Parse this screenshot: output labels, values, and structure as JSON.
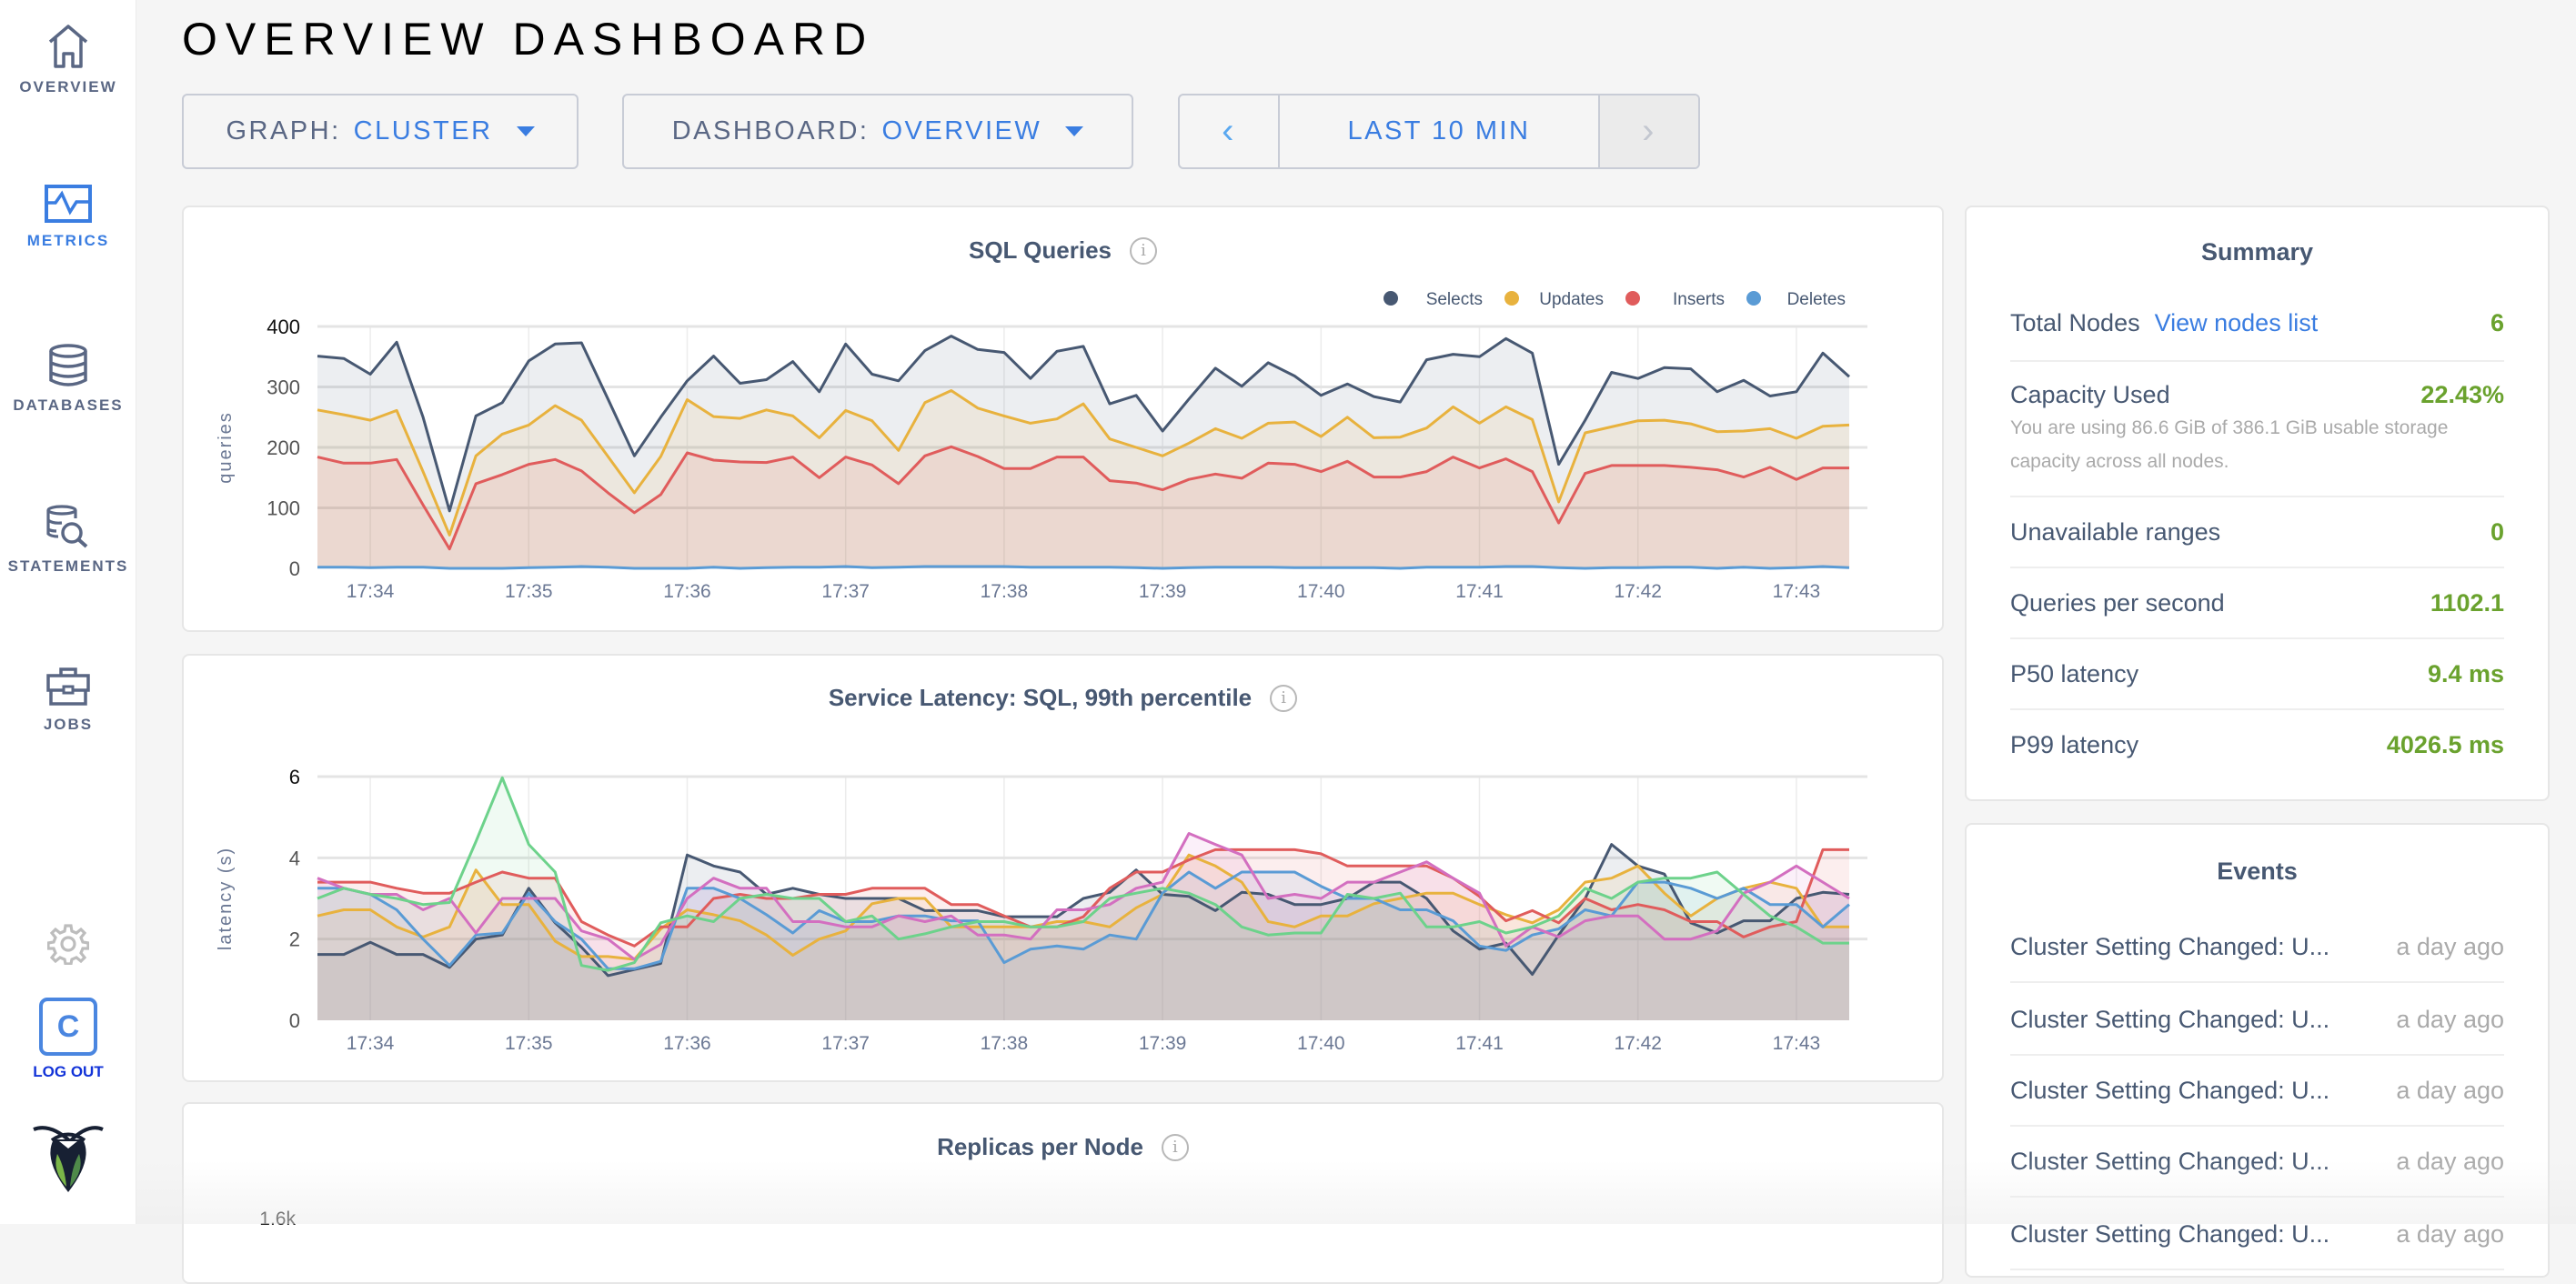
{
  "sidebar": {
    "items": [
      {
        "label": "OVERVIEW",
        "icon": "home-icon",
        "active": false
      },
      {
        "label": "METRICS",
        "icon": "metrics-icon",
        "active": true
      },
      {
        "label": "DATABASES",
        "icon": "database-icon",
        "active": false
      },
      {
        "label": "STATEMENTS",
        "icon": "statements-icon",
        "active": false
      },
      {
        "label": "JOBS",
        "icon": "briefcase-icon",
        "active": false
      }
    ],
    "settings_icon": "gear-icon",
    "user_initial": "C",
    "logout_label": "LOG OUT",
    "logo": "cockroach-logo"
  },
  "header": {
    "title": "OVERVIEW DASHBOARD",
    "graph_key": "GRAPH:",
    "graph_value": "CLUSTER",
    "dashboard_key": "DASHBOARD:",
    "dashboard_value": "OVERVIEW",
    "time_range": "LAST 10 MIN",
    "prev_icon": "‹",
    "next_icon": "›"
  },
  "colors": {
    "accent": "#3a7de1",
    "value_green": "#6aa22e",
    "text": "#475872"
  },
  "summary": {
    "title": "Summary",
    "total_nodes_label": "Total Nodes",
    "view_nodes_link": "View nodes list",
    "total_nodes": "6",
    "capacity_label": "Capacity Used",
    "capacity_value": "22.43%",
    "capacity_note": "You are using 86.6 GiB of 386.1 GiB usable storage capacity across all nodes.",
    "unavailable_label": "Unavailable ranges",
    "unavailable_value": "0",
    "qps_label": "Queries per second",
    "qps_value": "1102.1",
    "p50_label": "P50 latency",
    "p50_value": "9.4 ms",
    "p99_label": "P99 latency",
    "p99_value": "4026.5 ms"
  },
  "events": {
    "title": "Events",
    "items": [
      {
        "text": "Cluster Setting Changed: U...",
        "age": "a day ago"
      },
      {
        "text": "Cluster Setting Changed: U...",
        "age": "a day ago"
      },
      {
        "text": "Cluster Setting Changed: U...",
        "age": "a day ago"
      },
      {
        "text": "Cluster Setting Changed: U...",
        "age": "a day ago"
      },
      {
        "text": "Cluster Setting Changed: U...",
        "age": "a day ago"
      }
    ]
  },
  "chart_data": [
    {
      "type": "area",
      "title": "SQL Queries",
      "ylabel": "queries",
      "ylim": [
        0,
        400
      ],
      "yticks": [
        "0",
        "100",
        "200",
        "300",
        "400"
      ],
      "xticks": [
        "17:34",
        "17:35",
        "17:36",
        "17:37",
        "17:38",
        "17:39",
        "17:40",
        "17:41",
        "17:42",
        "17:43"
      ],
      "legend": "top-right",
      "grid": true,
      "x": [
        "17:33:40",
        "17:33:50",
        "17:34:00",
        "17:34:10",
        "17:34:20",
        "17:34:30",
        "17:34:40",
        "17:34:50",
        "17:35:00",
        "17:35:10",
        "17:35:20",
        "17:35:30",
        "17:35:40",
        "17:35:50",
        "17:36:00",
        "17:36:10",
        "17:36:20",
        "17:36:30",
        "17:36:40",
        "17:36:50",
        "17:37:00",
        "17:37:10",
        "17:37:20",
        "17:37:30",
        "17:37:40",
        "17:37:50",
        "17:38:00",
        "17:38:10",
        "17:38:20",
        "17:38:30",
        "17:38:40",
        "17:38:50",
        "17:39:00",
        "17:39:10",
        "17:39:20",
        "17:39:30",
        "17:39:40",
        "17:39:50",
        "17:40:00",
        "17:40:10",
        "17:40:20",
        "17:40:30",
        "17:40:40",
        "17:40:50",
        "17:41:00",
        "17:41:10",
        "17:41:20",
        "17:41:30",
        "17:41:40",
        "17:41:50",
        "17:42:00",
        "17:42:10",
        "17:42:20",
        "17:42:30",
        "17:42:40",
        "17:42:50",
        "17:43:00",
        "17:43:10",
        "17:43:20"
      ],
      "series": [
        {
          "name": "Selects",
          "color": "#475872",
          "values": [
            351,
            347,
            321,
            374,
            250,
            95,
            252,
            274,
            343,
            371,
            373,
            280,
            186,
            250,
            310,
            351,
            306,
            312,
            342,
            292,
            371,
            321,
            310,
            360,
            384,
            362,
            357,
            314,
            359,
            367,
            272,
            286,
            227,
            280,
            331,
            301,
            340,
            318,
            286,
            305,
            284,
            275,
            345,
            354,
            350,
            380,
            356,
            172,
            245,
            324,
            314,
            332,
            330,
            292,
            311,
            285,
            292,
            356,
            317
          ]
        },
        {
          "name": "Updates",
          "color": "#e8b23e",
          "values": [
            262,
            254,
            245,
            261,
            160,
            55,
            186,
            222,
            237,
            269,
            245,
            185,
            125,
            185,
            279,
            251,
            248,
            262,
            252,
            216,
            261,
            244,
            195,
            274,
            294,
            265,
            252,
            240,
            247,
            272,
            214,
            200,
            186,
            207,
            231,
            215,
            240,
            242,
            218,
            250,
            216,
            217,
            232,
            267,
            240,
            267,
            246,
            110,
            224,
            234,
            244,
            245,
            239,
            226,
            227,
            231,
            215,
            235,
            237
          ]
        },
        {
          "name": "Inserts",
          "color": "#e05c5c",
          "values": [
            184,
            174,
            174,
            180,
            105,
            32,
            140,
            155,
            172,
            180,
            161,
            125,
            92,
            122,
            191,
            179,
            176,
            175,
            184,
            150,
            184,
            171,
            140,
            186,
            201,
            185,
            165,
            165,
            184,
            184,
            145,
            141,
            130,
            147,
            156,
            149,
            174,
            172,
            160,
            177,
            151,
            151,
            160,
            184,
            166,
            181,
            160,
            75,
            157,
            170,
            170,
            170,
            167,
            163,
            151,
            167,
            147,
            166,
            166
          ]
        },
        {
          "name": "Deletes",
          "color": "#5a9bd5",
          "values": [
            2,
            2,
            1,
            2,
            2,
            0,
            0,
            0,
            1,
            2,
            3,
            2,
            0,
            0,
            0,
            2,
            0,
            1,
            2,
            2,
            3,
            1,
            2,
            3,
            3,
            3,
            3,
            2,
            2,
            2,
            2,
            1,
            0,
            1,
            2,
            2,
            2,
            1,
            1,
            1,
            1,
            0,
            2,
            2,
            2,
            3,
            3,
            1,
            0,
            1,
            1,
            2,
            2,
            0,
            2,
            0,
            1,
            3,
            1
          ]
        }
      ]
    },
    {
      "type": "area",
      "title": "Service Latency: SQL, 99th percentile",
      "ylabel": "latency (s)",
      "ylim": [
        0,
        6
      ],
      "yticks": [
        "0",
        "2",
        "4",
        "6"
      ],
      "xticks": [
        "17:34",
        "17:35",
        "17:36",
        "17:37",
        "17:38",
        "17:39",
        "17:40",
        "17:41",
        "17:42",
        "17:43"
      ],
      "grid": true,
      "x": [
        "17:33:40",
        "17:33:50",
        "17:34:00",
        "17:34:10",
        "17:34:20",
        "17:34:30",
        "17:34:40",
        "17:34:50",
        "17:35:00",
        "17:35:10",
        "17:35:20",
        "17:35:30",
        "17:35:40",
        "17:35:50",
        "17:36:00",
        "17:36:10",
        "17:36:20",
        "17:36:30",
        "17:36:40",
        "17:36:50",
        "17:37:00",
        "17:37:10",
        "17:37:20",
        "17:37:30",
        "17:37:40",
        "17:37:50",
        "17:38:00",
        "17:38:10",
        "17:38:20",
        "17:38:30",
        "17:38:40",
        "17:38:50",
        "17:39:00",
        "17:39:10",
        "17:39:20",
        "17:39:30",
        "17:39:40",
        "17:39:50",
        "17:40:00",
        "17:40:10",
        "17:40:20",
        "17:40:30",
        "17:40:40",
        "17:40:50",
        "17:41:00",
        "17:41:10",
        "17:41:20",
        "17:41:30",
        "17:41:40",
        "17:41:50",
        "17:42:00",
        "17:42:10",
        "17:42:20",
        "17:42:30",
        "17:42:40",
        "17:42:50",
        "17:43:00",
        "17:43:10",
        "17:43:20"
      ],
      "series": [
        {
          "color": "#475872",
          "values": [
            1.62,
            1.62,
            1.92,
            1.62,
            1.62,
            1.3,
            2.0,
            2.1,
            3.25,
            2.4,
            1.8,
            1.1,
            1.25,
            1.4,
            4.07,
            3.8,
            3.65,
            3.1,
            3.25,
            3.1,
            3.0,
            3.0,
            3.0,
            2.7,
            2.7,
            2.7,
            2.55,
            2.55,
            2.55,
            3.0,
            3.15,
            3.7,
            3.1,
            3.05,
            2.7,
            3.15,
            3.1,
            2.85,
            2.85,
            3.0,
            3.4,
            3.4,
            3.0,
            2.2,
            1.75,
            1.9,
            1.13,
            2.1,
            3.0,
            4.33,
            3.8,
            3.6,
            2.4,
            2.15,
            2.45,
            2.45,
            3.0,
            3.15,
            3.1
          ]
        },
        {
          "color": "#e8b23e",
          "values": [
            2.57,
            2.72,
            2.72,
            2.3,
            2.05,
            2.3,
            3.7,
            2.85,
            2.85,
            1.95,
            1.57,
            1.57,
            1.5,
            2.25,
            2.72,
            2.6,
            2.45,
            2.1,
            1.6,
            2.0,
            2.2,
            2.87,
            3.0,
            3.0,
            2.3,
            2.3,
            2.3,
            2.3,
            2.43,
            2.43,
            2.3,
            2.77,
            3.1,
            4.07,
            3.8,
            3.4,
            2.43,
            2.3,
            2.57,
            2.57,
            2.87,
            3.0,
            3.13,
            3.13,
            2.85,
            2.6,
            2.4,
            2.72,
            3.4,
            3.5,
            3.8,
            3.13,
            2.57,
            3.0,
            3.25,
            3.4,
            3.25,
            2.3,
            2.3
          ]
        },
        {
          "color": "#e05c5c",
          "values": [
            3.4,
            3.4,
            3.4,
            3.25,
            3.13,
            3.13,
            3.4,
            3.65,
            3.5,
            3.5,
            2.43,
            2.1,
            1.83,
            2.3,
            2.3,
            3.0,
            3.1,
            3.0,
            3.0,
            3.1,
            3.1,
            3.25,
            3.25,
            3.25,
            2.85,
            2.85,
            2.57,
            2.3,
            2.3,
            2.55,
            3.25,
            3.65,
            3.65,
            3.95,
            4.2,
            4.2,
            4.2,
            4.2,
            4.1,
            3.8,
            3.8,
            3.8,
            3.8,
            3.5,
            3.05,
            2.45,
            2.7,
            2.4,
            3.0,
            2.72,
            2.85,
            2.72,
            2.43,
            2.43,
            2.05,
            2.3,
            2.43,
            4.2,
            4.2
          ]
        },
        {
          "color": "#5a9bd5",
          "values": [
            3.25,
            3.25,
            3.1,
            2.72,
            2.0,
            1.35,
            2.1,
            2.15,
            3.13,
            2.43,
            2.0,
            1.27,
            1.27,
            1.45,
            3.25,
            3.25,
            3.0,
            2.6,
            2.15,
            2.7,
            2.43,
            2.43,
            2.57,
            2.57,
            2.45,
            2.45,
            1.42,
            1.75,
            1.83,
            1.75,
            2.1,
            2.0,
            3.13,
            3.65,
            3.25,
            3.65,
            3.65,
            3.65,
            3.3,
            3.0,
            3.0,
            2.72,
            2.72,
            2.45,
            1.83,
            1.72,
            2.1,
            2.25,
            2.72,
            2.57,
            3.4,
            3.4,
            3.25,
            3.0,
            3.25,
            2.85,
            2.85,
            2.3,
            2.85
          ]
        },
        {
          "color": "#d36fc0",
          "values": [
            3.5,
            3.25,
            3.1,
            3.1,
            2.72,
            3.0,
            2.15,
            3.0,
            3.0,
            3.0,
            2.2,
            2.0,
            1.5,
            1.87,
            3.0,
            3.5,
            3.25,
            3.25,
            2.43,
            2.43,
            2.3,
            2.3,
            2.57,
            2.43,
            2.57,
            2.1,
            2.1,
            2.0,
            2.72,
            2.72,
            2.85,
            3.25,
            3.4,
            4.6,
            4.33,
            4.07,
            3.0,
            3.1,
            3.0,
            3.4,
            3.4,
            3.65,
            3.9,
            3.5,
            3.13,
            1.83,
            2.3,
            2.05,
            2.45,
            2.57,
            2.57,
            2.0,
            2.0,
            2.2,
            3.13,
            3.4,
            3.8,
            3.4,
            3.0
          ]
        },
        {
          "color": "#6dd28b",
          "values": [
            3.0,
            3.25,
            3.1,
            3.0,
            2.85,
            2.9,
            4.4,
            5.97,
            4.33,
            3.65,
            1.35,
            1.23,
            1.42,
            2.4,
            2.57,
            2.43,
            3.0,
            3.1,
            3.0,
            3.0,
            2.43,
            2.57,
            2.0,
            2.13,
            2.3,
            2.43,
            2.43,
            2.3,
            2.3,
            2.43,
            3.0,
            3.13,
            3.25,
            3.13,
            2.85,
            2.3,
            2.1,
            2.15,
            2.15,
            3.1,
            3.0,
            3.13,
            2.3,
            2.3,
            2.43,
            2.15,
            2.3,
            2.57,
            3.25,
            3.0,
            3.4,
            3.5,
            3.5,
            3.65,
            3.1,
            2.57,
            2.3,
            1.9,
            1.9
          ]
        }
      ]
    },
    {
      "type": "line",
      "title": "Replicas per Node",
      "yticks": [
        "1.6k"
      ],
      "series": []
    }
  ]
}
